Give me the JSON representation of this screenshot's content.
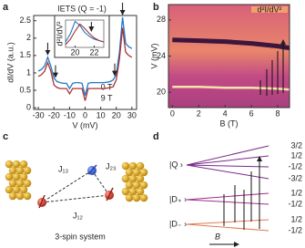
{
  "panel_labels": [
    "a",
    "b",
    "c",
    "d"
  ],
  "chart_data": [
    {
      "type": "line",
      "annotation": "IETS (Q = -1)",
      "xlabel": "V (mV)",
      "ylabel": "dI/dV (a.u.)",
      "x": [
        -30,
        -28,
        -26,
        -24,
        -22,
        -20,
        -18,
        -16,
        -14,
        -12,
        -10,
        -8,
        -6,
        -4,
        -2,
        0,
        2,
        4,
        6,
        8,
        10,
        12,
        14,
        16,
        18,
        20,
        22,
        24,
        26,
        28,
        30
      ],
      "series": [
        {
          "name": "0 T",
          "color": "#1f78c8",
          "values": [
            1.05,
            1.1,
            1.2,
            1.45,
            1.2,
            0.85,
            0.75,
            0.72,
            0.7,
            0.7,
            0.55,
            0.7,
            0.72,
            0.72,
            0.7,
            0.35,
            0.7,
            0.72,
            0.72,
            0.72,
            0.72,
            0.72,
            0.73,
            0.75,
            0.8,
            0.95,
            1.6,
            2.6,
            1.85,
            1.75,
            1.7
          ]
        },
        {
          "name": "9 T",
          "color": "#a83232",
          "values": [
            0.9,
            0.95,
            1.05,
            1.3,
            1.05,
            0.65,
            0.58,
            0.55,
            0.55,
            0.55,
            0.4,
            0.55,
            0.55,
            0.55,
            0.55,
            0.2,
            0.55,
            0.55,
            0.55,
            0.55,
            0.55,
            0.55,
            0.56,
            0.58,
            0.6,
            0.8,
            1.4,
            2.3,
            1.6,
            1.5,
            1.45
          ]
        }
      ],
      "xlim": [
        -33,
        33
      ],
      "xticks": [
        -30,
        -20,
        -10,
        0,
        10,
        20,
        30
      ],
      "ylim": [
        -0.05,
        2.65
      ],
      "yticks": [
        0,
        0.5,
        1,
        1.5,
        2,
        2.5
      ],
      "inset": {
        "type": "line",
        "ylabel": "d²I/dV²",
        "x": [
          19,
          19.5,
          20,
          20.5,
          21,
          21.5,
          22,
          22.5,
          23
        ],
        "series": [
          {
            "color": "#1f78c8",
            "values": [
              0.2,
              0.5,
              0.95,
              0.8,
              0.55,
              0.4,
              0.3,
              0.25,
              0.2
            ]
          },
          {
            "color": "#a83232",
            "values": [
              0.1,
              0.3,
              0.6,
              0.85,
              0.7,
              0.5,
              0.35,
              0.25,
              0.2
            ]
          }
        ],
        "xlim": [
          19,
          23
        ],
        "ylim": [
          0,
          1
        ],
        "xticks": [
          20,
          22
        ]
      }
    },
    {
      "type": "heatmap",
      "xlabel": "B (T)",
      "ylabel": "V (mV)",
      "colorbar_label": "d²I/dV²",
      "x": [
        0,
        2,
        4,
        6,
        8,
        8.9
      ],
      "series": [
        {
          "color": "#2a0a3a",
          "values": [
            25.8,
            25.7,
            25.6,
            25.4,
            25.1,
            24.9
          ]
        },
        {
          "color": "#fff2b0",
          "values": [
            20.6,
            20.6,
            20.5,
            20.5,
            20.4,
            20.3
          ]
        }
      ],
      "xlim": [
        -0.3,
        8.9
      ],
      "xticks": [
        0,
        2,
        4,
        6,
        8
      ],
      "ylim": [
        18.3,
        29.7
      ],
      "yticks": [
        20,
        24,
        28
      ]
    }
  ],
  "diagram": {
    "couplings": [
      "J₁₃",
      "J₂₃",
      "J₁₂"
    ],
    "caption": "3-spin system"
  },
  "levels": {
    "states": [
      "|Q ›",
      "|D₊ ›",
      "|D₋ ›"
    ],
    "m_labels": [
      "3/2",
      "1/2",
      "-1/2",
      "-3/2",
      "1/2",
      "-1/2",
      "1/2",
      "-1/2"
    ],
    "field_label": "B"
  }
}
